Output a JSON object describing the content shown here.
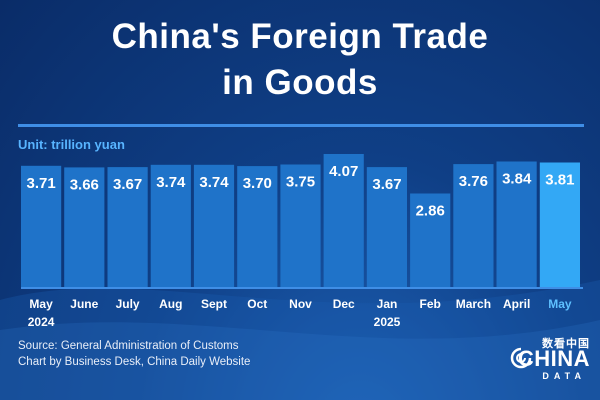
{
  "title": {
    "line1": "China's Foreign Trade",
    "line2": "in Goods"
  },
  "unit_label": "Unit: trillion yuan",
  "source": {
    "line1": "Source: General Administration of Customs",
    "line2": "Chart by Business Desk, China Daily Website"
  },
  "logo": {
    "chinese": "数看中国",
    "word": "CHINA",
    "sub": "DATA"
  },
  "colors": {
    "bar": "#1f73c9",
    "bar_highlight": "#33a8f5",
    "month_label": "#ffffff",
    "highlight_label": "#5ec0ff"
  },
  "chart_data": {
    "type": "bar",
    "categories": [
      "May",
      "June",
      "July",
      "Aug",
      "Sept",
      "Oct",
      "Nov",
      "Dec",
      "Jan",
      "Feb",
      "March",
      "April",
      "May"
    ],
    "year_labels": [
      "2024",
      "",
      "",
      "",
      "",
      "",
      "",
      "",
      "2025",
      "",
      "",
      "",
      ""
    ],
    "values": [
      3.71,
      3.66,
      3.67,
      3.74,
      3.74,
      3.7,
      3.75,
      4.07,
      3.67,
      2.86,
      3.76,
      3.84,
      3.81
    ],
    "value_labels": [
      "3.71",
      "3.66",
      "3.67",
      "3.74",
      "3.74",
      "3.70",
      "3.75",
      "4.07",
      "3.67",
      "2.86",
      "3.76",
      "3.84",
      "3.81"
    ],
    "highlight_index": 12,
    "ylabel": "Unit: trillion yuan",
    "ylim": [
      0,
      4.2
    ],
    "grid": false,
    "legend": "none"
  }
}
